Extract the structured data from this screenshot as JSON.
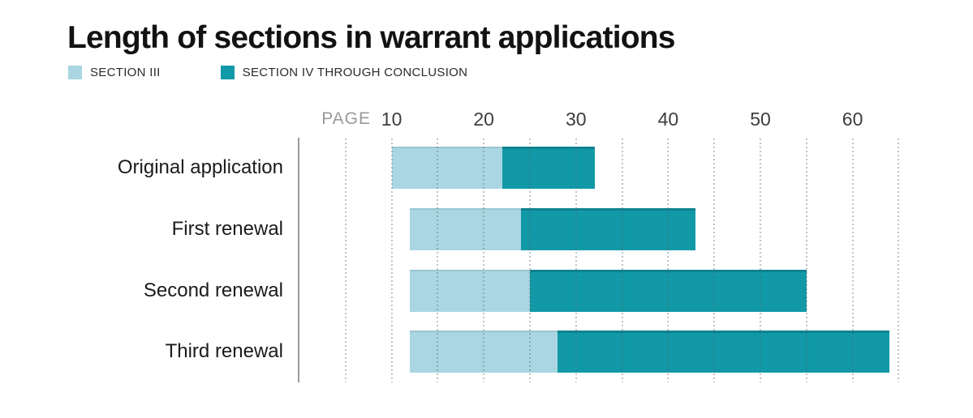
{
  "title": "Length of sections in warrant applications",
  "legend": {
    "items": [
      {
        "label": "SECTION III",
        "color": "#a9d6e2"
      },
      {
        "label": "SECTION IV THROUGH CONCLUSION",
        "color": "#1199a7"
      }
    ]
  },
  "chart_data": {
    "type": "bar",
    "orientation": "horizontal",
    "stacked": true,
    "title": "Length of sections in warrant applications",
    "x_axis": {
      "label": "PAGE",
      "ticks": [
        10,
        20,
        30,
        40,
        50,
        60
      ],
      "range": [
        0,
        66
      ]
    },
    "grid": {
      "style": "dotted",
      "axis": "x",
      "min": 5,
      "max": 65,
      "step": 5
    },
    "categories": [
      "Original application",
      "First renewal",
      "Second renewal",
      "Third renewal"
    ],
    "bar_start_pages": [
      10,
      12,
      12,
      12
    ],
    "series": [
      {
        "name": "SECTION III",
        "color": "#a9d6e2",
        "start_pages": [
          10,
          12,
          12,
          12
        ],
        "end_pages": [
          22,
          24,
          25,
          28
        ],
        "lengths_pages": [
          12,
          12,
          13,
          16
        ]
      },
      {
        "name": "SECTION IV THROUGH CONCLUSION",
        "color": "#1199a7",
        "start_pages": [
          22,
          24,
          25,
          28
        ],
        "end_pages": [
          32,
          43,
          55,
          64
        ],
        "lengths_pages": [
          10,
          19,
          30,
          36
        ]
      }
    ]
  },
  "colors": {
    "section_iii": "#a9d6e2",
    "section_iv_through_conclusion": "#1199a7",
    "axis_line": "#9b9b9b",
    "gridline": "#bdbdbd",
    "tick_text": "#3d3d3d",
    "page_unit_text": "#9a9a9a",
    "title_text": "#121212",
    "category_text": "#1b1b1b",
    "background": "#ffffff"
  }
}
